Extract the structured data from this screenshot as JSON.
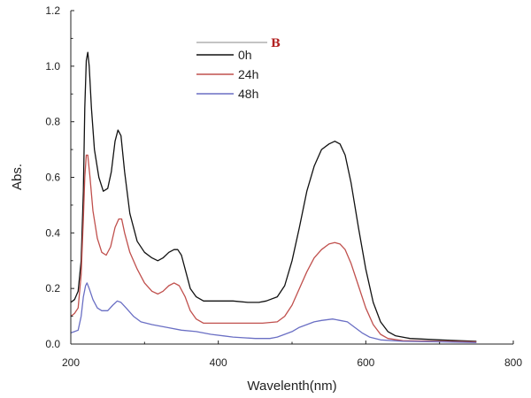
{
  "chart_data": {
    "type": "line",
    "panel_label": "B",
    "xlabel": "Wavelenth(nm)",
    "ylabel": "Abs.",
    "xlim": [
      200,
      800
    ],
    "ylim": [
      0.0,
      1.2
    ],
    "xticks": [
      "200",
      "400",
      "600",
      "800"
    ],
    "yticks": [
      "0.0",
      "0.2",
      "0.4",
      "0.6",
      "0.8",
      "1.0",
      "1.2"
    ],
    "legend_position": "top-center",
    "series": [
      {
        "name": "0h",
        "color": "#111111",
        "points": [
          [
            200,
            0.15
          ],
          [
            205,
            0.16
          ],
          [
            210,
            0.19
          ],
          [
            214,
            0.3
          ],
          [
            217,
            0.55
          ],
          [
            219,
            0.85
          ],
          [
            221,
            1.02
          ],
          [
            223,
            1.05
          ],
          [
            225,
            1.0
          ],
          [
            228,
            0.85
          ],
          [
            232,
            0.7
          ],
          [
            238,
            0.6
          ],
          [
            244,
            0.55
          ],
          [
            250,
            0.56
          ],
          [
            255,
            0.62
          ],
          [
            260,
            0.73
          ],
          [
            264,
            0.77
          ],
          [
            268,
            0.75
          ],
          [
            273,
            0.62
          ],
          [
            280,
            0.47
          ],
          [
            290,
            0.37
          ],
          [
            300,
            0.33
          ],
          [
            310,
            0.31
          ],
          [
            318,
            0.3
          ],
          [
            325,
            0.31
          ],
          [
            333,
            0.33
          ],
          [
            340,
            0.34
          ],
          [
            345,
            0.34
          ],
          [
            350,
            0.32
          ],
          [
            356,
            0.26
          ],
          [
            362,
            0.2
          ],
          [
            370,
            0.17
          ],
          [
            380,
            0.155
          ],
          [
            400,
            0.155
          ],
          [
            420,
            0.155
          ],
          [
            440,
            0.15
          ],
          [
            455,
            0.15
          ],
          [
            465,
            0.155
          ],
          [
            480,
            0.17
          ],
          [
            490,
            0.21
          ],
          [
            500,
            0.3
          ],
          [
            510,
            0.42
          ],
          [
            520,
            0.55
          ],
          [
            530,
            0.64
          ],
          [
            540,
            0.7
          ],
          [
            550,
            0.72
          ],
          [
            558,
            0.73
          ],
          [
            565,
            0.72
          ],
          [
            572,
            0.68
          ],
          [
            580,
            0.58
          ],
          [
            590,
            0.42
          ],
          [
            600,
            0.27
          ],
          [
            610,
            0.15
          ],
          [
            620,
            0.08
          ],
          [
            630,
            0.045
          ],
          [
            640,
            0.03
          ],
          [
            660,
            0.02
          ],
          [
            700,
            0.015
          ],
          [
            750,
            0.01
          ]
        ]
      },
      {
        "name": "24h",
        "color": "#c0504d",
        "points": [
          [
            200,
            0.1
          ],
          [
            205,
            0.11
          ],
          [
            210,
            0.13
          ],
          [
            214,
            0.25
          ],
          [
            217,
            0.45
          ],
          [
            219,
            0.6
          ],
          [
            221,
            0.68
          ],
          [
            223,
            0.68
          ],
          [
            226,
            0.6
          ],
          [
            230,
            0.48
          ],
          [
            236,
            0.38
          ],
          [
            242,
            0.33
          ],
          [
            248,
            0.32
          ],
          [
            254,
            0.35
          ],
          [
            260,
            0.42
          ],
          [
            265,
            0.45
          ],
          [
            269,
            0.45
          ],
          [
            273,
            0.4
          ],
          [
            280,
            0.33
          ],
          [
            290,
            0.27
          ],
          [
            300,
            0.22
          ],
          [
            310,
            0.19
          ],
          [
            318,
            0.18
          ],
          [
            325,
            0.19
          ],
          [
            333,
            0.21
          ],
          [
            340,
            0.22
          ],
          [
            347,
            0.21
          ],
          [
            355,
            0.17
          ],
          [
            362,
            0.12
          ],
          [
            370,
            0.09
          ],
          [
            380,
            0.075
          ],
          [
            400,
            0.075
          ],
          [
            430,
            0.075
          ],
          [
            460,
            0.075
          ],
          [
            480,
            0.08
          ],
          [
            490,
            0.1
          ],
          [
            500,
            0.14
          ],
          [
            510,
            0.2
          ],
          [
            520,
            0.26
          ],
          [
            530,
            0.31
          ],
          [
            540,
            0.34
          ],
          [
            550,
            0.36
          ],
          [
            558,
            0.365
          ],
          [
            565,
            0.36
          ],
          [
            572,
            0.34
          ],
          [
            580,
            0.29
          ],
          [
            590,
            0.21
          ],
          [
            600,
            0.13
          ],
          [
            610,
            0.07
          ],
          [
            620,
            0.035
          ],
          [
            630,
            0.02
          ],
          [
            650,
            0.012
          ],
          [
            700,
            0.01
          ],
          [
            750,
            0.008
          ]
        ]
      },
      {
        "name": "48h",
        "color": "#6a6fc4",
        "points": [
          [
            200,
            0.04
          ],
          [
            205,
            0.045
          ],
          [
            210,
            0.05
          ],
          [
            214,
            0.1
          ],
          [
            217,
            0.17
          ],
          [
            220,
            0.21
          ],
          [
            222,
            0.22
          ],
          [
            225,
            0.2
          ],
          [
            230,
            0.16
          ],
          [
            236,
            0.13
          ],
          [
            242,
            0.12
          ],
          [
            250,
            0.12
          ],
          [
            257,
            0.14
          ],
          [
            263,
            0.155
          ],
          [
            268,
            0.15
          ],
          [
            275,
            0.13
          ],
          [
            285,
            0.1
          ],
          [
            295,
            0.08
          ],
          [
            310,
            0.07
          ],
          [
            330,
            0.06
          ],
          [
            350,
            0.05
          ],
          [
            370,
            0.045
          ],
          [
            390,
            0.035
          ],
          [
            420,
            0.025
          ],
          [
            450,
            0.02
          ],
          [
            470,
            0.02
          ],
          [
            480,
            0.025
          ],
          [
            490,
            0.035
          ],
          [
            500,
            0.045
          ],
          [
            510,
            0.06
          ],
          [
            520,
            0.07
          ],
          [
            530,
            0.08
          ],
          [
            540,
            0.085
          ],
          [
            555,
            0.09
          ],
          [
            565,
            0.085
          ],
          [
            575,
            0.08
          ],
          [
            585,
            0.06
          ],
          [
            595,
            0.04
          ],
          [
            605,
            0.025
          ],
          [
            620,
            0.015
          ],
          [
            650,
            0.01
          ],
          [
            700,
            0.008
          ],
          [
            750,
            0.005
          ]
        ]
      }
    ]
  }
}
